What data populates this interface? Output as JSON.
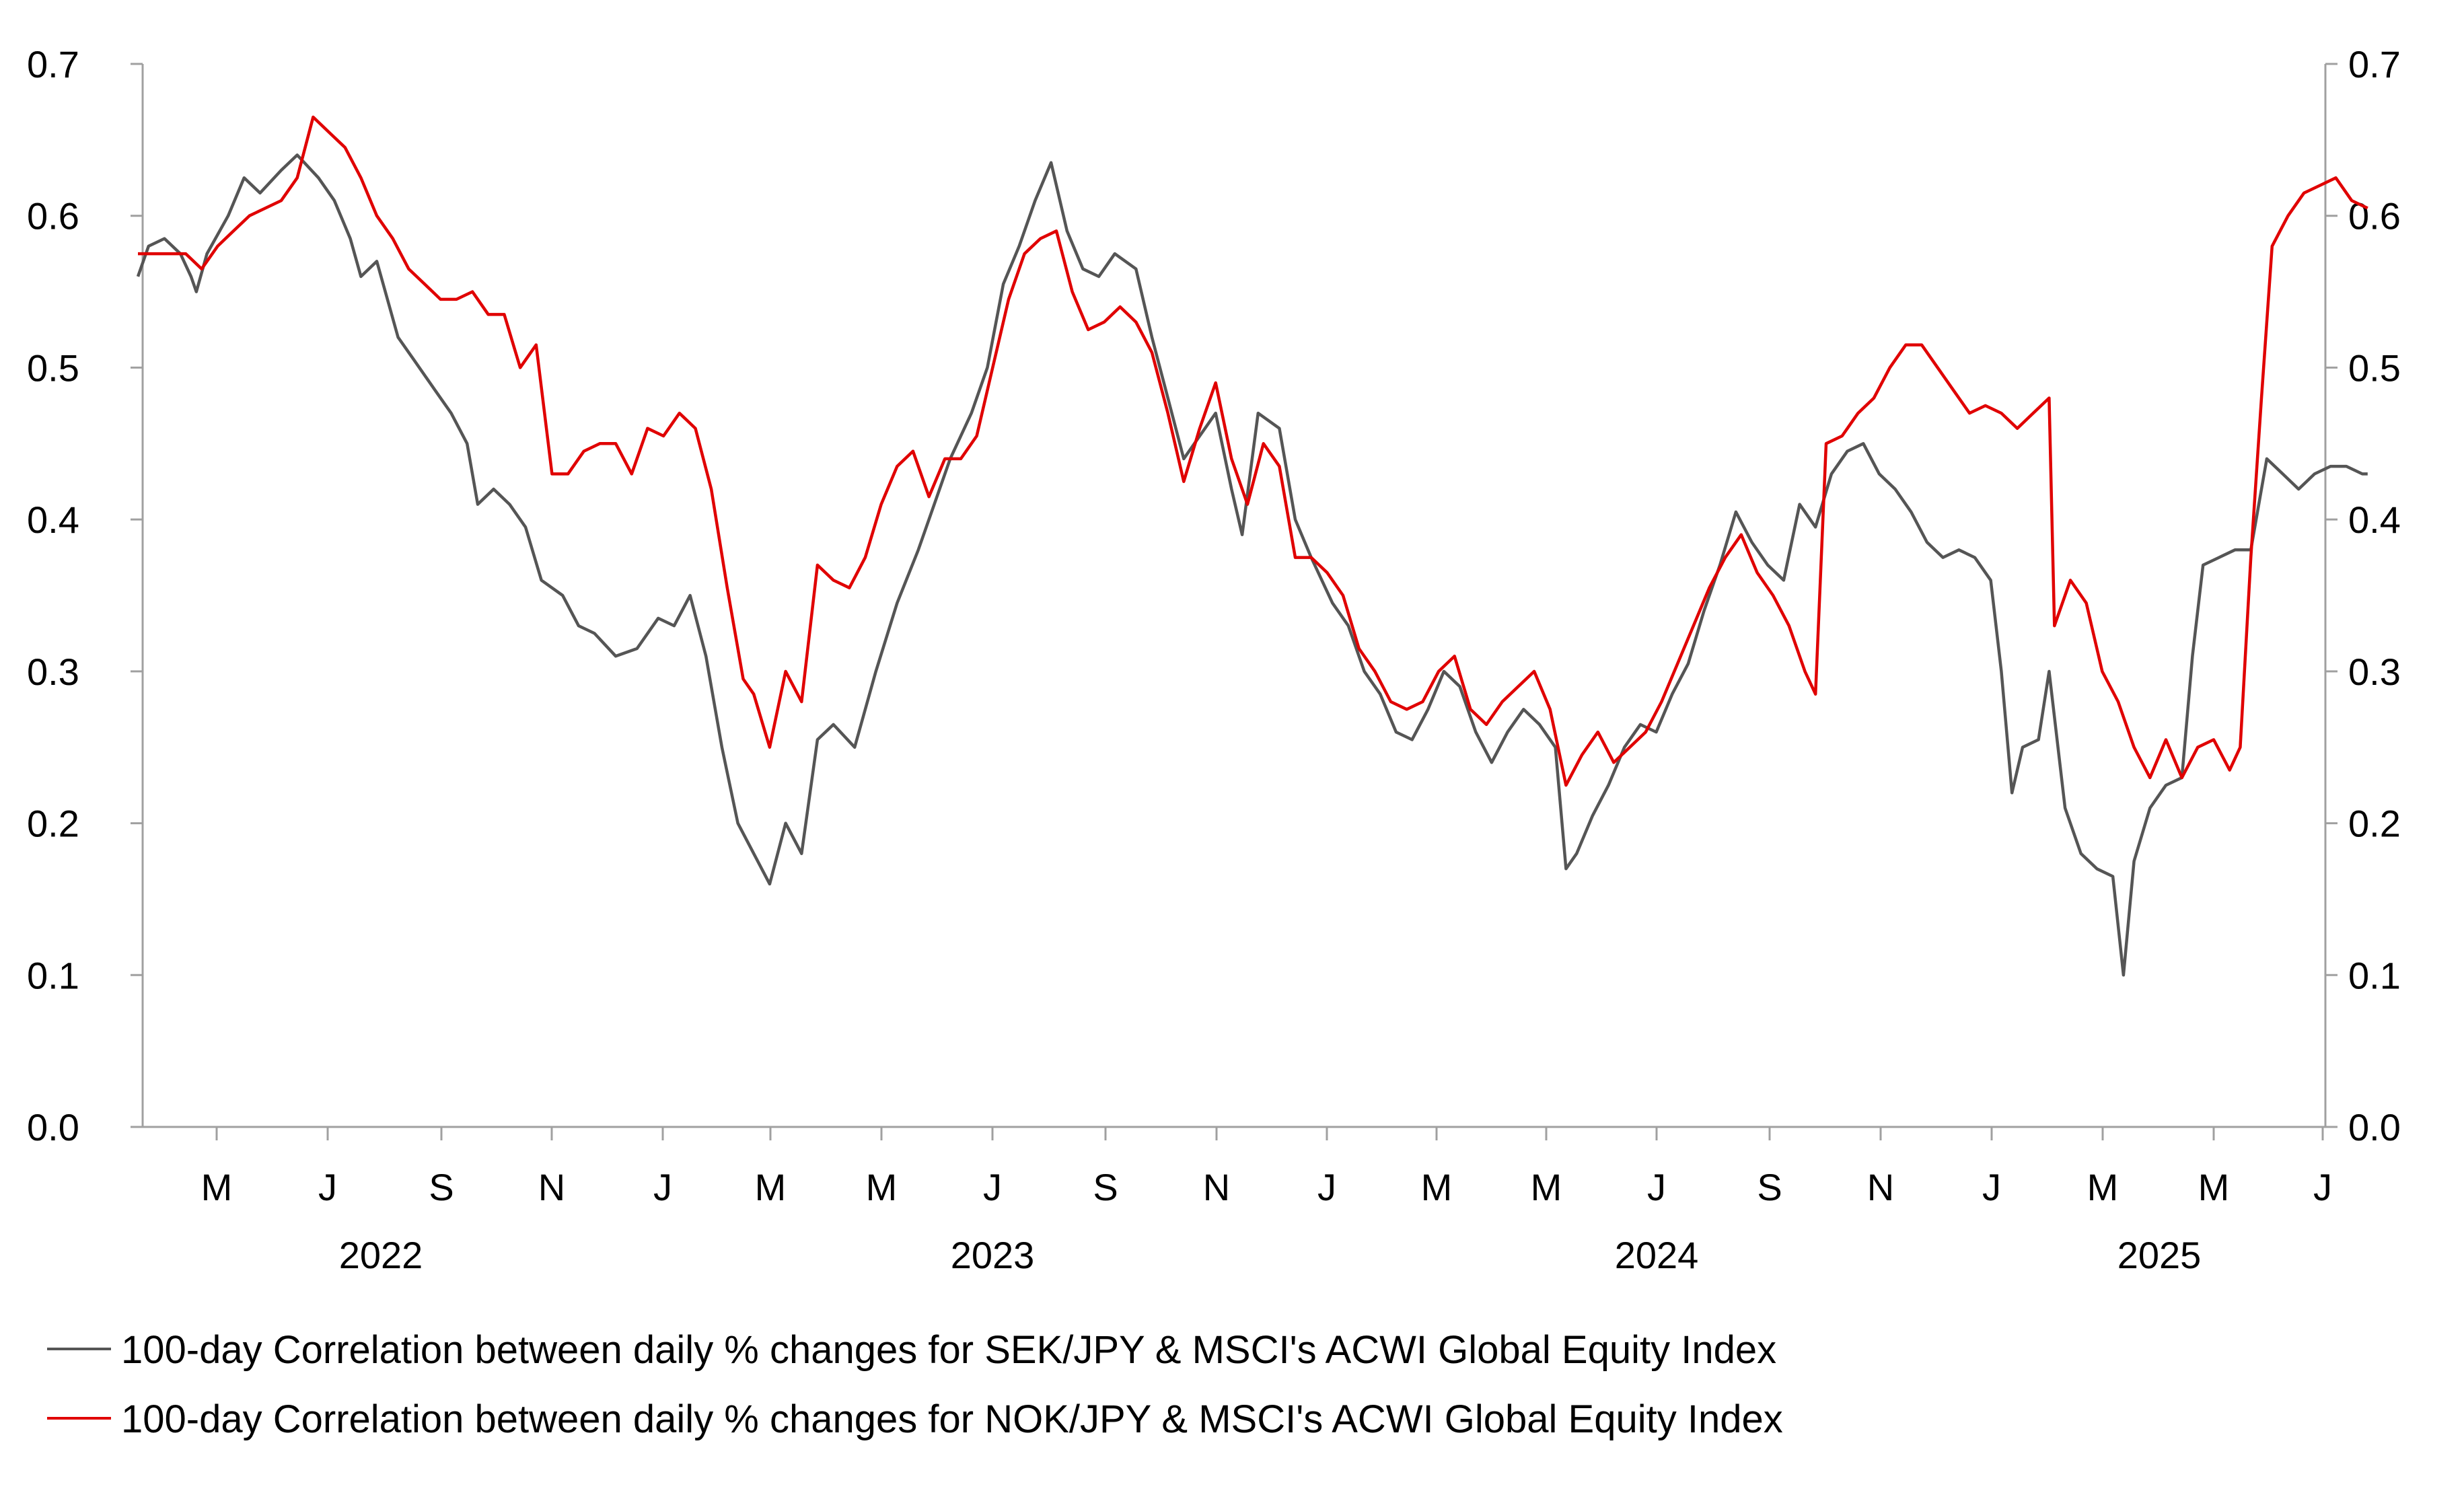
{
  "chart_data": {
    "type": "line",
    "title": "",
    "xlabel": "",
    "ylabel": "",
    "ylim": [
      0.0,
      0.7
    ],
    "y_ticks": [
      "0.0",
      "0.1",
      "0.2",
      "0.3",
      "0.4",
      "0.5",
      "0.6",
      "0.7"
    ],
    "month_ticks": [
      "M",
      "J",
      "S",
      "N",
      "J",
      "M",
      "M",
      "J",
      "S",
      "N",
      "J",
      "M",
      "M",
      "J",
      "S",
      "N",
      "J",
      "M",
      "M",
      "J"
    ],
    "years": [
      "2022",
      "2023",
      "2024",
      "2025"
    ],
    "x_range_months": [
      0,
      39.5
    ],
    "legend_position": "bottom",
    "series": [
      {
        "name": "100-day Correlation between daily % changes for SEK/JPY & MSCI's ACWI Global Equity Index",
        "color": "#555555",
        "points": [
          [
            0.0,
            0.56
          ],
          [
            0.2,
            0.58
          ],
          [
            0.5,
            0.585
          ],
          [
            0.8,
            0.575
          ],
          [
            1.0,
            0.56
          ],
          [
            1.1,
            0.55
          ],
          [
            1.3,
            0.575
          ],
          [
            1.7,
            0.6
          ],
          [
            2.0,
            0.625
          ],
          [
            2.3,
            0.615
          ],
          [
            2.7,
            0.63
          ],
          [
            3.0,
            0.64
          ],
          [
            3.4,
            0.625
          ],
          [
            3.7,
            0.61
          ],
          [
            4.0,
            0.585
          ],
          [
            4.2,
            0.56
          ],
          [
            4.5,
            0.57
          ],
          [
            4.9,
            0.52
          ],
          [
            5.2,
            0.505
          ],
          [
            5.6,
            0.485
          ],
          [
            5.9,
            0.47
          ],
          [
            6.2,
            0.45
          ],
          [
            6.4,
            0.41
          ],
          [
            6.7,
            0.42
          ],
          [
            7.0,
            0.41
          ],
          [
            7.3,
            0.395
          ],
          [
            7.6,
            0.36
          ],
          [
            8.0,
            0.35
          ],
          [
            8.3,
            0.33
          ],
          [
            8.6,
            0.325
          ],
          [
            9.0,
            0.31
          ],
          [
            9.4,
            0.315
          ],
          [
            9.8,
            0.335
          ],
          [
            10.1,
            0.33
          ],
          [
            10.4,
            0.35
          ],
          [
            10.7,
            0.31
          ],
          [
            11.0,
            0.25
          ],
          [
            11.3,
            0.2
          ],
          [
            11.6,
            0.18
          ],
          [
            11.9,
            0.16
          ],
          [
            12.2,
            0.2
          ],
          [
            12.5,
            0.18
          ],
          [
            12.8,
            0.255
          ],
          [
            13.1,
            0.265
          ],
          [
            13.5,
            0.25
          ],
          [
            13.9,
            0.3
          ],
          [
            14.3,
            0.345
          ],
          [
            14.7,
            0.38
          ],
          [
            15.0,
            0.41
          ],
          [
            15.3,
            0.44
          ],
          [
            15.7,
            0.47
          ],
          [
            16.0,
            0.5
          ],
          [
            16.3,
            0.555
          ],
          [
            16.6,
            0.58
          ],
          [
            16.9,
            0.61
          ],
          [
            17.2,
            0.635
          ],
          [
            17.5,
            0.59
          ],
          [
            17.8,
            0.565
          ],
          [
            18.1,
            0.56
          ],
          [
            18.4,
            0.575
          ],
          [
            18.8,
            0.565
          ],
          [
            19.1,
            0.52
          ],
          [
            19.4,
            0.48
          ],
          [
            19.7,
            0.44
          ],
          [
            20.0,
            0.455
          ],
          [
            20.3,
            0.47
          ],
          [
            20.6,
            0.42
          ],
          [
            20.8,
            0.39
          ],
          [
            21.1,
            0.47
          ],
          [
            21.5,
            0.46
          ],
          [
            21.8,
            0.4
          ],
          [
            22.1,
            0.375
          ],
          [
            22.5,
            0.345
          ],
          [
            22.8,
            0.33
          ],
          [
            23.1,
            0.3
          ],
          [
            23.4,
            0.285
          ],
          [
            23.7,
            0.26
          ],
          [
            24.0,
            0.255
          ],
          [
            24.3,
            0.275
          ],
          [
            24.6,
            0.3
          ],
          [
            24.9,
            0.29
          ],
          [
            25.2,
            0.26
          ],
          [
            25.5,
            0.24
          ],
          [
            25.8,
            0.26
          ],
          [
            26.1,
            0.275
          ],
          [
            26.4,
            0.265
          ],
          [
            26.7,
            0.25
          ],
          [
            26.9,
            0.17
          ],
          [
            27.1,
            0.18
          ],
          [
            27.4,
            0.205
          ],
          [
            27.7,
            0.225
          ],
          [
            28.0,
            0.25
          ],
          [
            28.3,
            0.265
          ],
          [
            28.6,
            0.26
          ],
          [
            28.9,
            0.285
          ],
          [
            29.2,
            0.305
          ],
          [
            29.5,
            0.34
          ],
          [
            29.8,
            0.37
          ],
          [
            30.1,
            0.405
          ],
          [
            30.4,
            0.385
          ],
          [
            30.7,
            0.37
          ],
          [
            31.0,
            0.36
          ],
          [
            31.3,
            0.41
          ],
          [
            31.6,
            0.395
          ],
          [
            31.9,
            0.43
          ],
          [
            32.2,
            0.445
          ],
          [
            32.5,
            0.45
          ],
          [
            32.8,
            0.43
          ],
          [
            33.1,
            0.42
          ],
          [
            33.4,
            0.405
          ],
          [
            33.7,
            0.385
          ],
          [
            34.0,
            0.375
          ],
          [
            34.3,
            0.38
          ],
          [
            34.6,
            0.375
          ],
          [
            34.9,
            0.36
          ],
          [
            35.1,
            0.3
          ],
          [
            35.3,
            0.22
          ],
          [
            35.5,
            0.25
          ],
          [
            35.8,
            0.255
          ],
          [
            36.0,
            0.3
          ],
          [
            36.3,
            0.21
          ],
          [
            36.6,
            0.18
          ],
          [
            36.9,
            0.17
          ],
          [
            37.2,
            0.165
          ],
          [
            37.4,
            0.1
          ],
          [
            37.6,
            0.175
          ],
          [
            37.9,
            0.21
          ],
          [
            38.2,
            0.225
          ],
          [
            38.5,
            0.23
          ],
          [
            38.7,
            0.31
          ],
          [
            38.9,
            0.37
          ],
          [
            39.2,
            0.375
          ],
          [
            39.5,
            0.38
          ],
          [
            39.8,
            0.38
          ],
          [
            40.1,
            0.44
          ],
          [
            40.4,
            0.43
          ],
          [
            40.7,
            0.42
          ],
          [
            41.0,
            0.43
          ],
          [
            41.3,
            0.435
          ],
          [
            41.6,
            0.435
          ],
          [
            41.9,
            0.43
          ],
          [
            42.0,
            0.43
          ]
        ]
      },
      {
        "name": "100-day Correlation between daily % changes for NOK/JPY & MSCI's ACWI Global Equity Index",
        "color": "#e00000",
        "points": [
          [
            0.0,
            0.575
          ],
          [
            0.3,
            0.575
          ],
          [
            0.6,
            0.575
          ],
          [
            0.9,
            0.575
          ],
          [
            1.2,
            0.565
          ],
          [
            1.5,
            0.58
          ],
          [
            1.8,
            0.59
          ],
          [
            2.1,
            0.6
          ],
          [
            2.4,
            0.605
          ],
          [
            2.7,
            0.61
          ],
          [
            3.0,
            0.625
          ],
          [
            3.3,
            0.665
          ],
          [
            3.6,
            0.655
          ],
          [
            3.9,
            0.645
          ],
          [
            4.2,
            0.625
          ],
          [
            4.5,
            0.6
          ],
          [
            4.8,
            0.585
          ],
          [
            5.1,
            0.565
          ],
          [
            5.4,
            0.555
          ],
          [
            5.7,
            0.545
          ],
          [
            6.0,
            0.545
          ],
          [
            6.3,
            0.55
          ],
          [
            6.6,
            0.535
          ],
          [
            6.9,
            0.535
          ],
          [
            7.2,
            0.5
          ],
          [
            7.5,
            0.515
          ],
          [
            7.8,
            0.43
          ],
          [
            8.1,
            0.43
          ],
          [
            8.4,
            0.445
          ],
          [
            8.7,
            0.45
          ],
          [
            9.0,
            0.45
          ],
          [
            9.3,
            0.43
          ],
          [
            9.6,
            0.46
          ],
          [
            9.9,
            0.455
          ],
          [
            10.2,
            0.47
          ],
          [
            10.5,
            0.46
          ],
          [
            10.8,
            0.42
          ],
          [
            11.1,
            0.355
          ],
          [
            11.4,
            0.295
          ],
          [
            11.6,
            0.285
          ],
          [
            11.9,
            0.25
          ],
          [
            12.2,
            0.3
          ],
          [
            12.5,
            0.28
          ],
          [
            12.8,
            0.37
          ],
          [
            13.1,
            0.36
          ],
          [
            13.4,
            0.355
          ],
          [
            13.7,
            0.375
          ],
          [
            14.0,
            0.41
          ],
          [
            14.3,
            0.435
          ],
          [
            14.6,
            0.445
          ],
          [
            14.9,
            0.415
          ],
          [
            15.2,
            0.44
          ],
          [
            15.5,
            0.44
          ],
          [
            15.8,
            0.455
          ],
          [
            16.1,
            0.5
          ],
          [
            16.4,
            0.545
          ],
          [
            16.7,
            0.575
          ],
          [
            17.0,
            0.585
          ],
          [
            17.3,
            0.59
          ],
          [
            17.6,
            0.55
          ],
          [
            17.9,
            0.525
          ],
          [
            18.2,
            0.53
          ],
          [
            18.5,
            0.54
          ],
          [
            18.8,
            0.53
          ],
          [
            19.1,
            0.51
          ],
          [
            19.4,
            0.47
          ],
          [
            19.7,
            0.425
          ],
          [
            20.0,
            0.46
          ],
          [
            20.3,
            0.49
          ],
          [
            20.6,
            0.44
          ],
          [
            20.9,
            0.41
          ],
          [
            21.2,
            0.45
          ],
          [
            21.5,
            0.435
          ],
          [
            21.8,
            0.375
          ],
          [
            22.1,
            0.375
          ],
          [
            22.4,
            0.365
          ],
          [
            22.7,
            0.35
          ],
          [
            23.0,
            0.315
          ],
          [
            23.3,
            0.3
          ],
          [
            23.6,
            0.28
          ],
          [
            23.9,
            0.275
          ],
          [
            24.2,
            0.28
          ],
          [
            24.5,
            0.3
          ],
          [
            24.8,
            0.31
          ],
          [
            25.1,
            0.275
          ],
          [
            25.4,
            0.265
          ],
          [
            25.7,
            0.28
          ],
          [
            26.0,
            0.29
          ],
          [
            26.3,
            0.3
          ],
          [
            26.6,
            0.275
          ],
          [
            26.9,
            0.225
          ],
          [
            27.2,
            0.245
          ],
          [
            27.5,
            0.26
          ],
          [
            27.8,
            0.24
          ],
          [
            28.1,
            0.25
          ],
          [
            28.4,
            0.26
          ],
          [
            28.7,
            0.28
          ],
          [
            29.0,
            0.305
          ],
          [
            29.3,
            0.33
          ],
          [
            29.6,
            0.355
          ],
          [
            29.9,
            0.375
          ],
          [
            30.2,
            0.39
          ],
          [
            30.5,
            0.365
          ],
          [
            30.8,
            0.35
          ],
          [
            31.1,
            0.33
          ],
          [
            31.4,
            0.3
          ],
          [
            31.6,
            0.285
          ],
          [
            31.8,
            0.45
          ],
          [
            32.1,
            0.455
          ],
          [
            32.4,
            0.47
          ],
          [
            32.7,
            0.48
          ],
          [
            33.0,
            0.5
          ],
          [
            33.3,
            0.515
          ],
          [
            33.6,
            0.515
          ],
          [
            33.9,
            0.5
          ],
          [
            34.2,
            0.485
          ],
          [
            34.5,
            0.47
          ],
          [
            34.8,
            0.475
          ],
          [
            35.1,
            0.47
          ],
          [
            35.4,
            0.46
          ],
          [
            35.7,
            0.47
          ],
          [
            36.0,
            0.48
          ],
          [
            36.1,
            0.33
          ],
          [
            36.4,
            0.36
          ],
          [
            36.7,
            0.345
          ],
          [
            37.0,
            0.3
          ],
          [
            37.3,
            0.28
          ],
          [
            37.6,
            0.25
          ],
          [
            37.9,
            0.23
          ],
          [
            38.2,
            0.255
          ],
          [
            38.5,
            0.23
          ],
          [
            38.8,
            0.25
          ],
          [
            39.1,
            0.255
          ],
          [
            39.4,
            0.235
          ],
          [
            39.6,
            0.25
          ],
          [
            39.8,
            0.375
          ],
          [
            40.0,
            0.48
          ],
          [
            40.2,
            0.58
          ],
          [
            40.5,
            0.6
          ],
          [
            40.8,
            0.615
          ],
          [
            41.1,
            0.62
          ],
          [
            41.4,
            0.625
          ],
          [
            41.7,
            0.61
          ],
          [
            42.0,
            0.605
          ]
        ]
      }
    ]
  }
}
